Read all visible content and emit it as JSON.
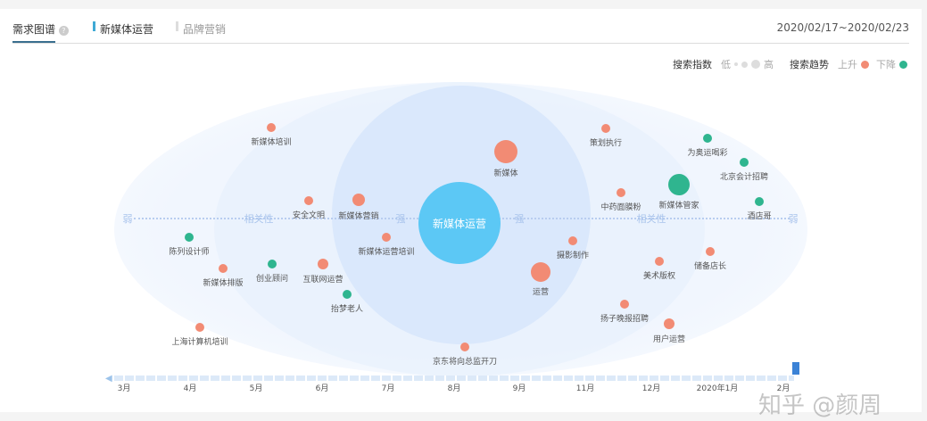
{
  "tabs": [
    {
      "label": "需求图谱",
      "active": true
    },
    {
      "label": "新媒体运营"
    },
    {
      "label": "品牌营销"
    }
  ],
  "date_range": "2020/02/17~2020/02/23",
  "legend": {
    "index_label": "搜索指数",
    "low": "低",
    "high": "高",
    "trend_label": "搜索趋势",
    "up": "上升",
    "down": "下降"
  },
  "colors": {
    "up": "#f28b74",
    "down": "#2fb58f",
    "center": "#5cc8f5",
    "accent": "#3fa9d5"
  },
  "center": "新媒体运营",
  "axis": {
    "weak": "弱",
    "relevance": "相关性",
    "strong": "强"
  },
  "nodes": [
    {
      "label": "新媒体培训",
      "trend": "up"
    },
    {
      "label": "安全文明",
      "trend": "up"
    },
    {
      "label": "新媒体营销",
      "trend": "up"
    },
    {
      "label": "新媒体运营培训",
      "trend": "up"
    },
    {
      "label": "互联网运营",
      "trend": "up"
    },
    {
      "label": "新媒体排版",
      "trend": "up"
    },
    {
      "label": "上海计算机培训",
      "trend": "up"
    },
    {
      "label": "京东将向总监开刀",
      "trend": "up"
    },
    {
      "label": "新媒体",
      "trend": "up"
    },
    {
      "label": "策划执行",
      "trend": "up"
    },
    {
      "label": "中药面膜粉",
      "trend": "up"
    },
    {
      "label": "摄影制作",
      "trend": "up"
    },
    {
      "label": "运营",
      "trend": "up"
    },
    {
      "label": "美术版权",
      "trend": "up"
    },
    {
      "label": "储备店长",
      "trend": "up"
    },
    {
      "label": "扬子晚报招聘",
      "trend": "up"
    },
    {
      "label": "用户运营",
      "trend": "up"
    },
    {
      "label": "陈列设计师",
      "trend": "down"
    },
    {
      "label": "创业顾问",
      "trend": "down"
    },
    {
      "label": "抬梦老人",
      "trend": "down"
    },
    {
      "label": "为奥运喝彩",
      "trend": "down"
    },
    {
      "label": "北京会计招聘",
      "trend": "down"
    },
    {
      "label": "新媒体管家",
      "trend": "down"
    },
    {
      "label": "酒店哥",
      "trend": "down"
    }
  ],
  "timeline": [
    "3月",
    "4月",
    "5月",
    "6月",
    "7月",
    "8月",
    "9月",
    "11月",
    "12月",
    "2020年1月",
    "2月"
  ],
  "watermark": "知乎 @颜周"
}
